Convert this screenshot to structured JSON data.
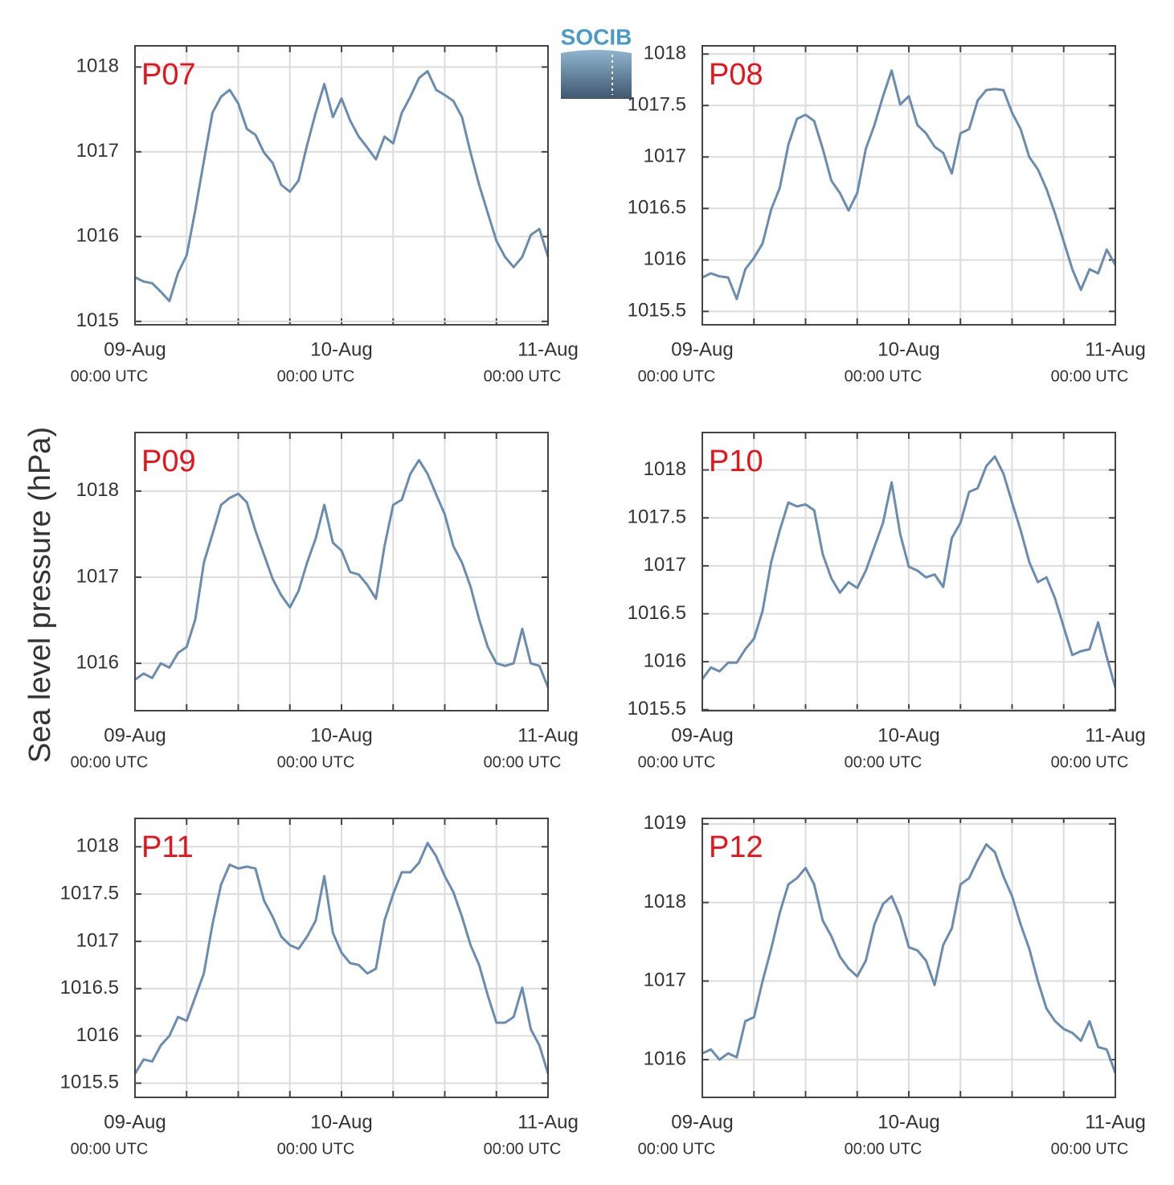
{
  "ylabel": "Sea level pressure (hPa)",
  "logo": "SOCIB",
  "chart_data": [
    {
      "type": "line",
      "title": "P07",
      "color": "#6a8caf",
      "x": [
        0,
        1,
        2,
        3,
        4,
        5,
        6,
        7,
        8,
        9,
        10,
        11,
        12,
        13,
        14,
        15,
        16,
        17,
        18,
        19,
        20,
        21,
        22,
        23,
        24,
        25,
        26,
        27,
        28,
        29,
        30,
        31,
        32,
        33,
        34,
        35,
        36,
        37,
        38,
        39,
        40,
        41,
        42,
        43,
        44,
        45,
        46,
        47,
        48
      ],
      "values": [
        1015.52,
        1015.47,
        1015.45,
        1015.35,
        1015.24,
        1015.57,
        1015.78,
        1016.31,
        1016.89,
        1017.46,
        1017.65,
        1017.73,
        1017.57,
        1017.27,
        1017.2,
        1016.99,
        1016.87,
        1016.61,
        1016.53,
        1016.66,
        1017.08,
        1017.46,
        1017.8,
        1017.41,
        1017.63,
        1017.37,
        1017.18,
        1017.05,
        1016.91,
        1017.18,
        1017.1,
        1017.46,
        1017.65,
        1017.87,
        1017.95,
        1017.73,
        1017.67,
        1017.6,
        1017.41,
        1016.99,
        1016.61,
        1016.28,
        1015.95,
        1015.76,
        1015.64,
        1015.76,
        1016.02,
        1016.09,
        1015.76
      ],
      "xlim": [
        0,
        48
      ],
      "xticks": [
        {
          "value": 0,
          "label": "09-Aug",
          "sublabel": "00:00 UTC"
        },
        {
          "value": 24,
          "label": "10-Aug",
          "sublabel": "00:00 UTC"
        },
        {
          "value": 48,
          "label": "11-Aug",
          "sublabel": "00:00 UTC"
        }
      ],
      "xminorticks": [
        6,
        12,
        18,
        30,
        36,
        42
      ],
      "ylim": [
        1014.96,
        1018.25
      ],
      "yticks": [
        1015,
        1016,
        1017,
        1018
      ],
      "grid": true
    },
    {
      "type": "line",
      "title": "P08",
      "color": "#6a8caf",
      "x": [
        0,
        1,
        2,
        3,
        4,
        5,
        6,
        7,
        8,
        9,
        10,
        11,
        12,
        13,
        14,
        15,
        16,
        17,
        18,
        19,
        20,
        21,
        22,
        23,
        24,
        25,
        26,
        27,
        28,
        29,
        30,
        31,
        32,
        33,
        34,
        35,
        36,
        37,
        38,
        39,
        40,
        41,
        42,
        43,
        44,
        45,
        46,
        47,
        48
      ],
      "values": [
        1015.83,
        1015.87,
        1015.84,
        1015.83,
        1015.62,
        1015.91,
        1016.02,
        1016.16,
        1016.49,
        1016.7,
        1017.12,
        1017.37,
        1017.41,
        1017.35,
        1017.08,
        1016.77,
        1016.65,
        1016.48,
        1016.65,
        1017.08,
        1017.31,
        1017.59,
        1017.84,
        1017.51,
        1017.59,
        1017.31,
        1017.23,
        1017.1,
        1017.04,
        1016.84,
        1017.23,
        1017.27,
        1017.55,
        1017.65,
        1017.66,
        1017.65,
        1017.43,
        1017.27,
        1017,
        1016.88,
        1016.69,
        1016.45,
        1016.18,
        1015.91,
        1015.71,
        1015.91,
        1015.87,
        1016.1,
        1015.95
      ],
      "xlim": [
        0,
        48
      ],
      "xticks": [
        {
          "value": 0,
          "label": "09-Aug",
          "sublabel": "00:00 UTC"
        },
        {
          "value": 24,
          "label": "10-Aug",
          "sublabel": "00:00 UTC"
        },
        {
          "value": 48,
          "label": "11-Aug",
          "sublabel": "00:00 UTC"
        }
      ],
      "xminorticks": [
        6,
        12,
        18,
        30,
        36,
        42
      ],
      "ylim": [
        1015.37,
        1018.08
      ],
      "yticks": [
        1015.5,
        1016,
        1016.5,
        1017,
        1017.5,
        1018
      ],
      "grid": true
    },
    {
      "type": "line",
      "title": "P09",
      "color": "#6a8caf",
      "x": [
        0,
        1,
        2,
        3,
        4,
        5,
        6,
        7,
        8,
        9,
        10,
        11,
        12,
        13,
        14,
        15,
        16,
        17,
        18,
        19,
        20,
        21,
        22,
        23,
        24,
        25,
        26,
        27,
        28,
        29,
        30,
        31,
        32,
        33,
        34,
        35,
        36,
        37,
        38,
        39,
        40,
        41,
        42,
        43,
        44,
        45,
        46,
        47,
        48
      ],
      "values": [
        1015.81,
        1015.88,
        1015.83,
        1016,
        1015.95,
        1016.12,
        1016.19,
        1016.51,
        1017.17,
        1017.5,
        1017.84,
        1017.92,
        1017.97,
        1017.87,
        1017.54,
        1017.26,
        1016.98,
        1016.79,
        1016.65,
        1016.84,
        1017.17,
        1017.45,
        1017.84,
        1017.4,
        1017.31,
        1017.06,
        1017.03,
        1016.91,
        1016.75,
        1017.36,
        1017.84,
        1017.9,
        1018.2,
        1018.36,
        1018.2,
        1017.96,
        1017.73,
        1017.36,
        1017.17,
        1016.89,
        1016.51,
        1016.19,
        1016,
        1015.97,
        1016,
        1016.4,
        1016,
        1015.97,
        1015.72
      ],
      "xlim": [
        0,
        48
      ],
      "xticks": [
        {
          "value": 0,
          "label": "09-Aug",
          "sublabel": "00:00 UTC"
        },
        {
          "value": 24,
          "label": "10-Aug",
          "sublabel": "00:00 UTC"
        },
        {
          "value": 48,
          "label": "11-Aug",
          "sublabel": "00:00 UTC"
        }
      ],
      "xminorticks": [
        6,
        12,
        18,
        30,
        36,
        42
      ],
      "ylim": [
        1015.45,
        1018.68
      ],
      "yticks": [
        1016,
        1017,
        1018
      ],
      "grid": true
    },
    {
      "type": "line",
      "title": "P10",
      "color": "#6a8caf",
      "x": [
        0,
        1,
        2,
        3,
        4,
        5,
        6,
        7,
        8,
        9,
        10,
        11,
        12,
        13,
        14,
        15,
        16,
        17,
        18,
        19,
        20,
        21,
        22,
        23,
        24,
        25,
        26,
        27,
        28,
        29,
        30,
        31,
        32,
        33,
        34,
        35,
        36,
        37,
        38,
        39,
        40,
        41,
        42,
        43,
        44,
        45,
        46,
        47,
        48
      ],
      "values": [
        1015.82,
        1015.94,
        1015.9,
        1015.99,
        1015.99,
        1016.13,
        1016.24,
        1016.53,
        1017.04,
        1017.37,
        1017.66,
        1017.62,
        1017.64,
        1017.58,
        1017.12,
        1016.87,
        1016.72,
        1016.83,
        1016.77,
        1016.95,
        1017.2,
        1017.45,
        1017.87,
        1017.33,
        1016.99,
        1016.95,
        1016.88,
        1016.91,
        1016.78,
        1017.29,
        1017.45,
        1017.77,
        1017.81,
        1018.04,
        1018.14,
        1017.96,
        1017.66,
        1017.37,
        1017.04,
        1016.83,
        1016.88,
        1016.66,
        1016.36,
        1016.07,
        1016.11,
        1016.13,
        1016.41,
        1016.05,
        1015.73
      ],
      "xlim": [
        0,
        48
      ],
      "xticks": [
        {
          "value": 0,
          "label": "09-Aug",
          "sublabel": "00:00 UTC"
        },
        {
          "value": 24,
          "label": "10-Aug",
          "sublabel": "00:00 UTC"
        },
        {
          "value": 48,
          "label": "11-Aug",
          "sublabel": "00:00 UTC"
        }
      ],
      "xminorticks": [
        6,
        12,
        18,
        30,
        36,
        42
      ],
      "ylim": [
        1015.49,
        1018.39
      ],
      "yticks": [
        1015.5,
        1016,
        1016.5,
        1017,
        1017.5,
        1018
      ],
      "grid": true
    },
    {
      "type": "line",
      "title": "P11",
      "color": "#6a8caf",
      "x": [
        0,
        1,
        2,
        3,
        4,
        5,
        6,
        7,
        8,
        9,
        10,
        11,
        12,
        13,
        14,
        15,
        16,
        17,
        18,
        19,
        20,
        21,
        22,
        23,
        24,
        25,
        26,
        27,
        28,
        29,
        30,
        31,
        32,
        33,
        34,
        35,
        36,
        37,
        38,
        39,
        40,
        41,
        42,
        43,
        44,
        45,
        46,
        47,
        48
      ],
      "values": [
        1015.6,
        1015.75,
        1015.73,
        1015.9,
        1016,
        1016.2,
        1016.16,
        1016.41,
        1016.66,
        1017.18,
        1017.6,
        1017.81,
        1017.77,
        1017.79,
        1017.77,
        1017.43,
        1017.26,
        1017.05,
        1016.96,
        1016.92,
        1017.05,
        1017.22,
        1017.69,
        1017.09,
        1016.88,
        1016.77,
        1016.75,
        1016.66,
        1016.71,
        1017.22,
        1017.5,
        1017.73,
        1017.73,
        1017.83,
        1018.04,
        1017.9,
        1017.69,
        1017.52,
        1017.26,
        1016.96,
        1016.75,
        1016.43,
        1016.14,
        1016.14,
        1016.2,
        1016.51,
        1016.07,
        1015.9,
        1015.6
      ],
      "xlim": [
        0,
        48
      ],
      "xticks": [
        {
          "value": 0,
          "label": "09-Aug",
          "sublabel": "00:00 UTC"
        },
        {
          "value": 24,
          "label": "10-Aug",
          "sublabel": "00:00 UTC"
        },
        {
          "value": 48,
          "label": "11-Aug",
          "sublabel": "00:00 UTC"
        }
      ],
      "xminorticks": [
        6,
        12,
        18,
        30,
        36,
        42
      ],
      "ylim": [
        1015.35,
        1018.3
      ],
      "yticks": [
        1015.5,
        1016,
        1016.5,
        1017,
        1017.5,
        1018
      ],
      "grid": true
    },
    {
      "type": "line",
      "title": "P12",
      "color": "#6a8caf",
      "x": [
        0,
        1,
        2,
        3,
        4,
        5,
        6,
        7,
        8,
        9,
        10,
        11,
        12,
        13,
        14,
        15,
        16,
        17,
        18,
        19,
        20,
        21,
        22,
        23,
        24,
        25,
        26,
        27,
        28,
        29,
        30,
        31,
        32,
        33,
        34,
        35,
        36,
        37,
        38,
        39,
        40,
        41,
        42,
        43,
        44,
        45,
        46,
        47,
        48
      ],
      "values": [
        1016.08,
        1016.13,
        1016,
        1016.08,
        1016.03,
        1016.49,
        1016.54,
        1017,
        1017.41,
        1017.87,
        1018.23,
        1018.31,
        1018.44,
        1018.23,
        1017.77,
        1017.57,
        1017.31,
        1017.16,
        1017.06,
        1017.26,
        1017.72,
        1017.98,
        1018.08,
        1017.82,
        1017.43,
        1017.39,
        1017.26,
        1016.95,
        1017.46,
        1017.67,
        1018.23,
        1018.31,
        1018.54,
        1018.74,
        1018.64,
        1018.33,
        1018.08,
        1017.72,
        1017.41,
        1017,
        1016.65,
        1016.49,
        1016.39,
        1016.34,
        1016.24,
        1016.49,
        1016.16,
        1016.13,
        1015.83
      ],
      "xlim": [
        0,
        48
      ],
      "xticks": [
        {
          "value": 0,
          "label": "09-Aug",
          "sublabel": "00:00 UTC"
        },
        {
          "value": 24,
          "label": "10-Aug",
          "sublabel": "00:00 UTC"
        },
        {
          "value": 48,
          "label": "11-Aug",
          "sublabel": "00:00 UTC"
        }
      ],
      "xminorticks": [
        6,
        12,
        18,
        30,
        36,
        42
      ],
      "ylim": [
        1015.52,
        1019.07
      ],
      "yticks": [
        1016,
        1017,
        1018,
        1019
      ],
      "grid": true
    }
  ]
}
